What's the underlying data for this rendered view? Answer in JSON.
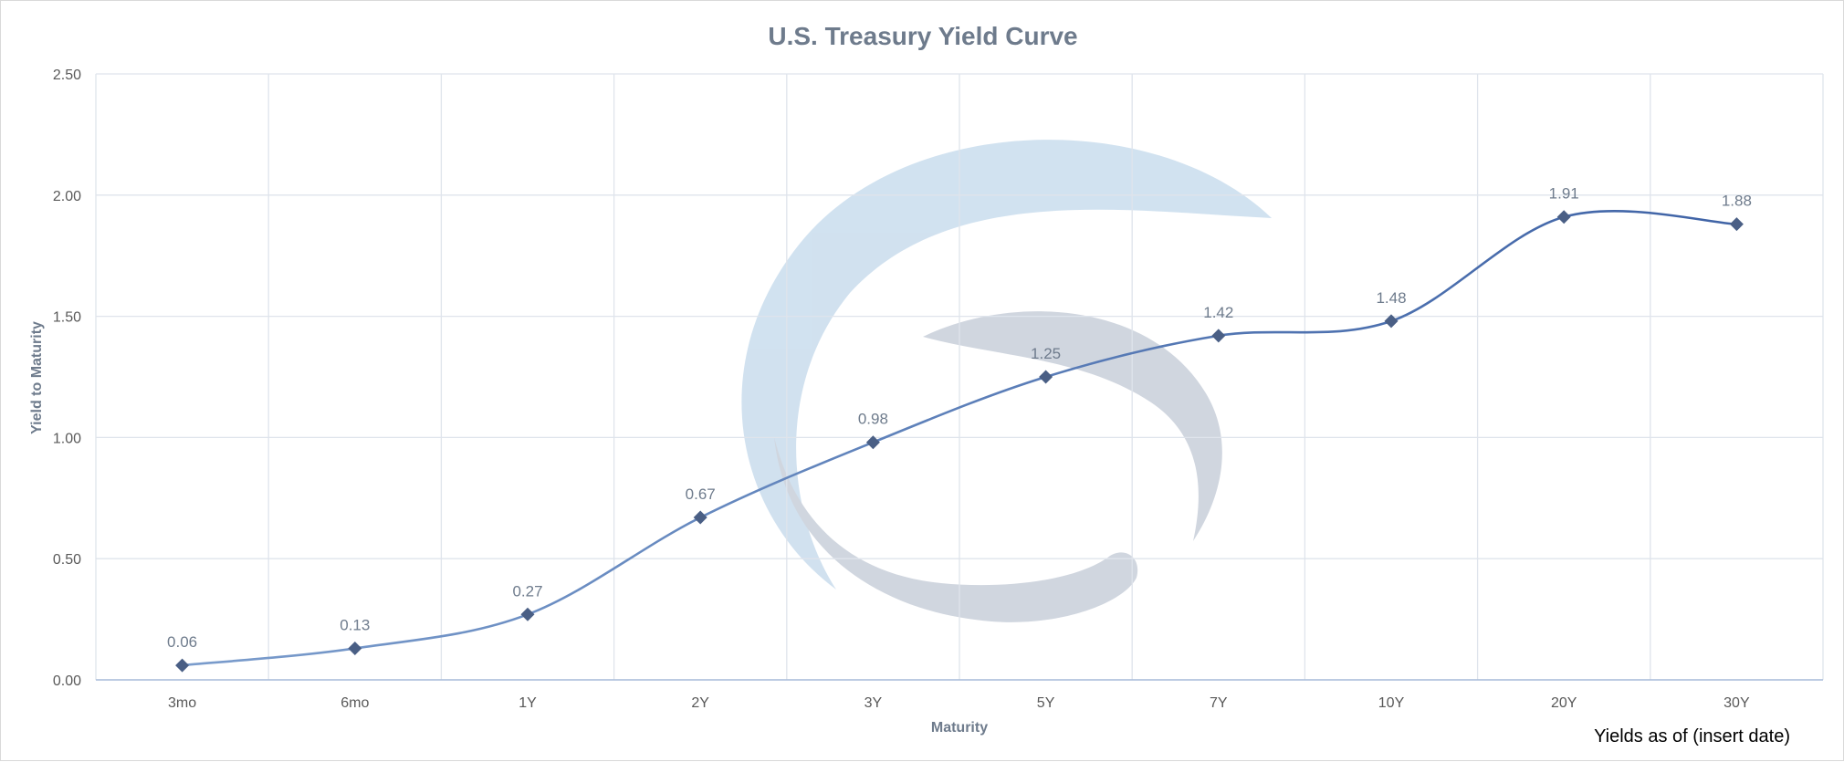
{
  "chart_data": {
    "type": "line",
    "title": "U.S. Treasury Yield Curve",
    "xlabel": "Maturity",
    "ylabel": "Yield to Maturity",
    "categories": [
      "3mo",
      "6mo",
      "1Y",
      "2Y",
      "3Y",
      "5Y",
      "7Y",
      "10Y",
      "20Y",
      "30Y"
    ],
    "series": [
      {
        "values": [
          0.06,
          0.13,
          0.27,
          0.67,
          0.98,
          1.25,
          1.42,
          1.48,
          1.91,
          1.88
        ]
      }
    ],
    "data_labels": [
      "0.06",
      "0.13",
      "0.27",
      "0.67",
      "0.98",
      "1.25",
      "1.42",
      "1.48",
      "1.91",
      "1.88"
    ],
    "ylim": [
      0,
      2.5
    ],
    "y_ticks": [
      "0.00",
      "0.50",
      "1.00",
      "1.50",
      "2.00",
      "2.50"
    ],
    "grid": true,
    "smoothed": true,
    "marker": "diamond",
    "colors": {
      "line_start": "#7a9ccc",
      "line_end": "#3f63a6",
      "marker": "#4a5f85",
      "watermark_blue": "#cfe0ef",
      "watermark_gray": "#ced4de"
    }
  },
  "footnote": "Yields as of (insert date)"
}
